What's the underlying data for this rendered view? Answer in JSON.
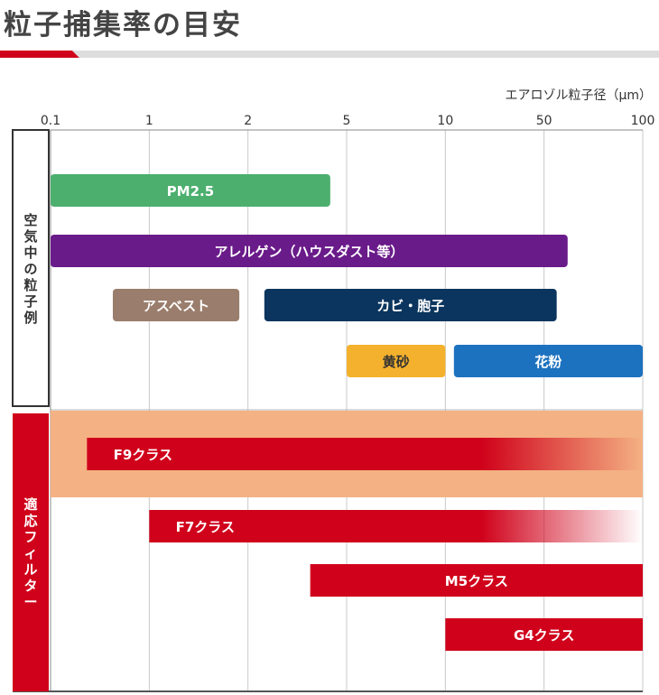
{
  "page": {
    "title": "粒子捕集率の目安",
    "colors": {
      "accent": "#d0021b",
      "rule_gray": "#dddddd"
    }
  },
  "chart_data": {
    "type": "bar",
    "subtype": "range-bar (gantt-style)",
    "x_scale": "log",
    "xlim": [
      0.1,
      100
    ],
    "x_unit_label": "エアロゾル粒子径（μm）",
    "tick_values": [
      0.1,
      1,
      2,
      5,
      10,
      50,
      100
    ],
    "tick_labels": [
      "0.1",
      "1",
      "2",
      "5",
      "10",
      "50",
      "100"
    ],
    "tick_label_pos": [
      0.1,
      0.3,
      1,
      3,
      10,
      30,
      100
    ],
    "grid": true,
    "groups": [
      {
        "name": "空気中の粒子例",
        "color": "#ffffff",
        "text_color": "#333333",
        "rows": [
          [
            {
              "label": "PM2.5",
              "start": 0.1,
              "end": 2.5,
              "color": "#4caf6e"
            }
          ],
          [
            {
              "label": "アレルゲン（ハウスダスト等）",
              "start": 0.1,
              "end": 40,
              "color": "#6a1b8a"
            }
          ],
          [
            {
              "label": "アスベスト",
              "start": 0.2,
              "end": 0.9,
              "color": "#9a7d6c"
            },
            {
              "label": "カビ・胞子",
              "start": 1.2,
              "end": 35,
              "color": "#0b355e"
            }
          ],
          [
            {
              "label": "黄砂",
              "start": 3,
              "end": 10,
              "color": "#f3b12d",
              "dark": true
            },
            {
              "label": "花粉",
              "start": 11,
              "end": 100,
              "color": "#1d72bf"
            }
          ]
        ]
      },
      {
        "name": "適応フィルター",
        "color": "#d0021b",
        "text_color": "#ffffff",
        "rows": [
          [
            {
              "label": "F9クラス",
              "start": 0.15,
              "end": 100,
              "color": "#d0021b",
              "fade_from": 15,
              "highlight": [
                0.1,
                100
              ],
              "highlight_color": "#f4b183"
            }
          ],
          [
            {
              "label": "F7クラス",
              "start": 0.3,
              "end": 100,
              "color": "#d0021b",
              "fade_from": 15
            }
          ],
          [
            {
              "label": "M5クラス",
              "start": 2,
              "end": 100,
              "color": "#d0021b"
            }
          ],
          [
            {
              "label": "G4クラス",
              "start": 10,
              "end": 100,
              "color": "#d0021b"
            }
          ]
        ]
      }
    ]
  }
}
